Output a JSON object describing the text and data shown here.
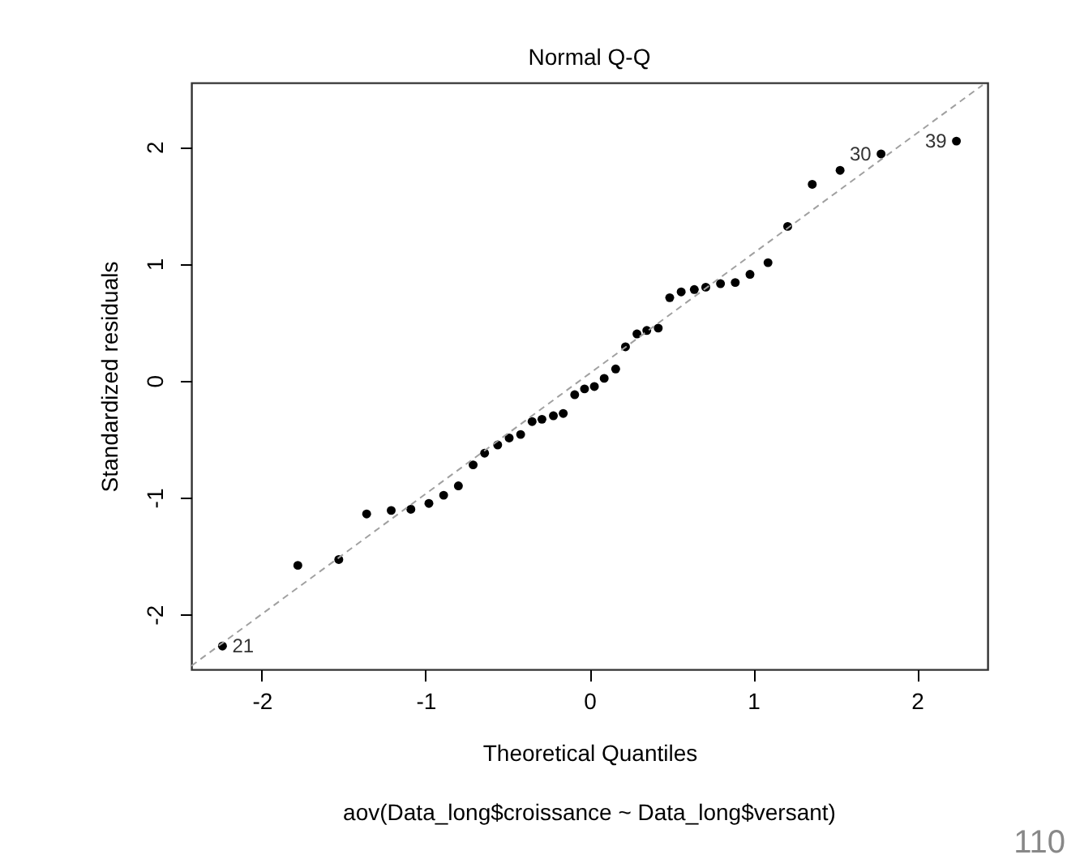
{
  "chart_data": {
    "type": "scatter",
    "title": "Normal Q-Q",
    "subtitle": "aov(Data_long$croissance ~ Data_long$versant)",
    "xlabel": "Theoretical Quantiles",
    "ylabel": "Standardized residuals",
    "xlim": [
      -2.43,
      2.43
    ],
    "ylim": [
      -2.47,
      2.55
    ],
    "xticks": [
      -2,
      -1,
      0,
      1,
      2
    ],
    "yticks": [
      -2,
      -1,
      0,
      1,
      2
    ],
    "marker": "circle",
    "series": [
      {
        "color": "#000000",
        "x": [
          -2.24,
          -1.78,
          -1.53,
          -1.36,
          -1.21,
          -1.09,
          -0.98,
          -0.89,
          -0.8,
          -0.71,
          -0.64,
          -0.56,
          -0.49,
          -0.42,
          -0.35,
          -0.29,
          -0.22,
          -0.16,
          -0.09,
          -0.03,
          0.03,
          0.09,
          0.16,
          0.22,
          0.29,
          0.35,
          0.42,
          0.49,
          0.56,
          0.64,
          0.71,
          0.8,
          0.89,
          0.98,
          1.09,
          1.21,
          1.36,
          1.53,
          1.78,
          2.24
        ],
        "values": [
          -2.27,
          -1.58,
          -1.53,
          -1.14,
          -1.11,
          -1.1,
          -1.05,
          -0.98,
          -0.9,
          -0.72,
          -0.62,
          -0.55,
          -0.49,
          -0.46,
          -0.35,
          -0.33,
          -0.3,
          -0.28,
          -0.12,
          -0.07,
          -0.05,
          0.02,
          0.1,
          0.29,
          0.4,
          0.43,
          0.45,
          0.71,
          0.76,
          0.78,
          0.8,
          0.83,
          0.84,
          0.91,
          1.01,
          1.32,
          1.68,
          1.8,
          1.94,
          2.05
        ]
      },
      {
        "type": "line",
        "color": "#a0a0a0",
        "line_style": "dashed",
        "marker": "none",
        "x": [
          -2.43,
          2.4
        ],
        "values": [
          -2.44,
          2.53
        ]
      }
    ],
    "annotations": [
      {
        "text": "21",
        "x": -2.24,
        "y": -2.27
      },
      {
        "text": "30",
        "x": 1.78,
        "y": 1.94
      },
      {
        "text": "39",
        "x": 2.24,
        "y": 2.05
      },
      "110"
    ]
  }
}
